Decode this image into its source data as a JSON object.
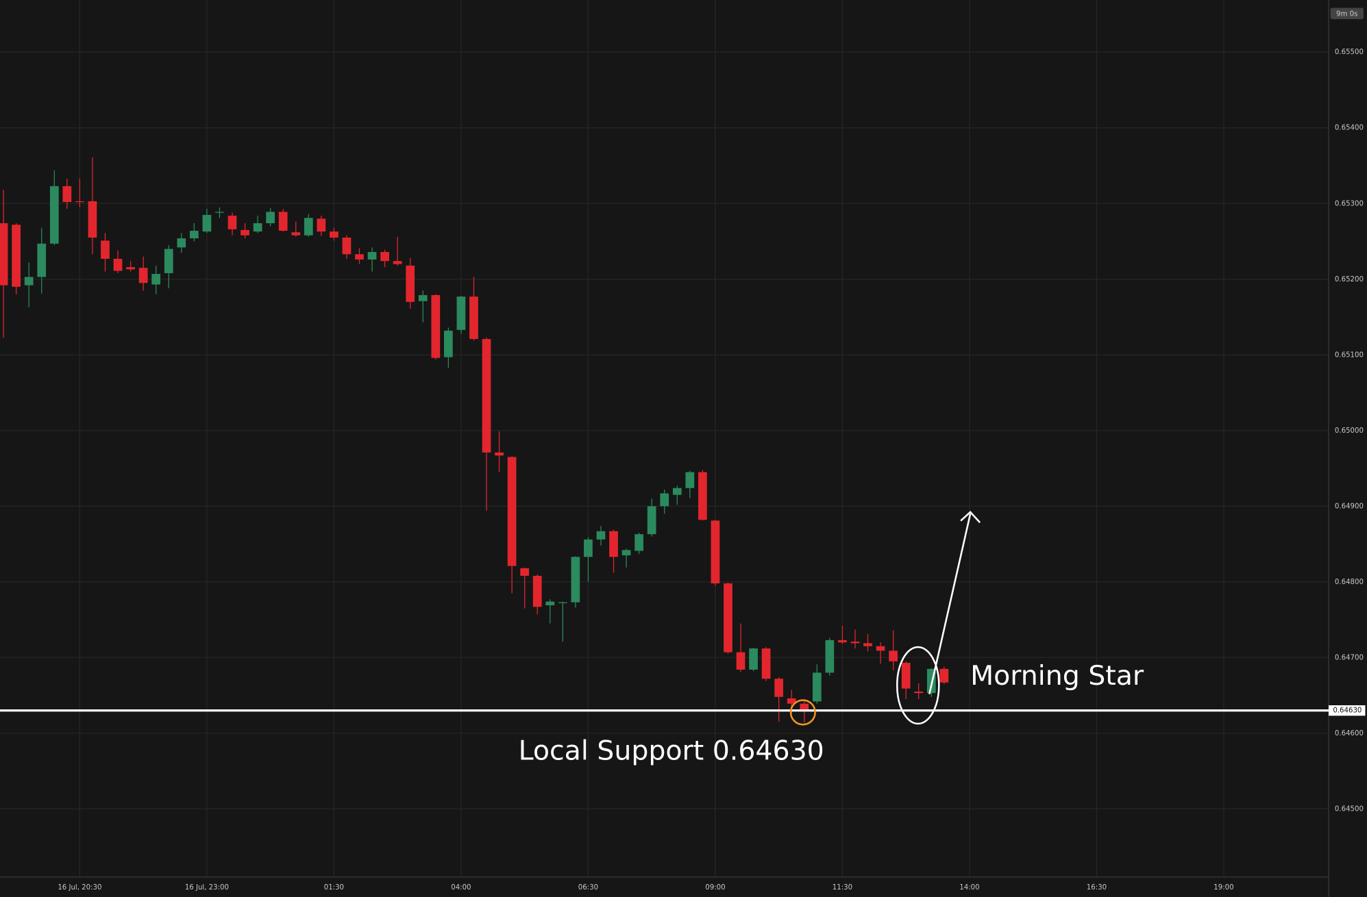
{
  "chart_data": {
    "type": "candlestick",
    "categories": [
      null,
      null,
      null,
      null,
      null,
      null,
      "16 Jul, 20:30",
      null,
      null,
      null,
      null,
      null,
      null,
      null,
      null,
      null,
      "16 Jul, 23:00",
      null,
      null,
      null,
      null,
      null,
      null,
      null,
      null,
      null,
      "01:30",
      null,
      null,
      null,
      null,
      null,
      null,
      null,
      null,
      null,
      "04:00",
      null,
      null,
      null,
      null,
      null,
      null,
      null,
      null,
      null,
      "06:30",
      null,
      null,
      null,
      null,
      null,
      null,
      null,
      null,
      null,
      "09:00",
      null,
      null,
      null,
      null,
      null,
      null,
      null,
      null,
      null,
      "11:30",
      null,
      null,
      null,
      null,
      null,
      null,
      null,
      null,
      null,
      "14:00",
      null,
      null,
      null,
      null,
      null,
      null,
      null,
      null,
      null,
      "16:30",
      null,
      null,
      null,
      null,
      null,
      null,
      null,
      null,
      null,
      "19:00"
    ],
    "open": [
      0.65274,
      0.65272,
      0.65192,
      0.65203,
      0.65247,
      0.65323,
      0.65303,
      0.65303,
      0.65251,
      0.65227,
      0.65216,
      0.65215,
      0.65193,
      0.65208,
      0.65242,
      0.65254,
      0.65263,
      0.65288,
      0.65284,
      0.65265,
      0.65263,
      0.65274,
      0.65289,
      0.65262,
      0.65258,
      0.6528,
      0.65263,
      0.65255,
      0.65233,
      0.65226,
      0.65236,
      0.65224,
      0.65218,
      0.65171,
      0.65179,
      0.65097,
      0.65133,
      0.65177,
      0.65121,
      0.64971,
      0.64965,
      0.64818,
      0.64808,
      0.64769,
      0.64772,
      0.64773,
      0.64833,
      0.64856,
      0.64867,
      0.64835,
      0.64841,
      0.64863,
      0.649,
      0.64915,
      0.64924,
      0.64945,
      0.64881,
      0.64798,
      0.64707,
      0.64684,
      0.64712,
      0.64672,
      0.64646,
      0.64639,
      0.64642,
      0.6468,
      0.64723,
      0.64721,
      0.64719,
      0.64715,
      0.64709,
      0.64693,
      0.64655,
      0.64653,
      0.64685,
      null,
      null,
      null,
      null,
      null,
      null,
      null,
      null,
      null,
      null,
      null,
      null,
      null,
      null,
      null,
      null,
      null,
      null,
      null,
      null,
      null,
      null
    ],
    "high": [
      0.65318,
      0.65274,
      0.65222,
      0.65268,
      0.65344,
      0.65333,
      0.65333,
      0.65361,
      0.65261,
      0.65238,
      0.65224,
      0.6523,
      0.65218,
      0.65245,
      0.65261,
      0.65274,
      0.65293,
      0.65295,
      0.65288,
      0.65274,
      0.65284,
      0.65294,
      0.65293,
      0.65276,
      0.65286,
      0.65284,
      0.65268,
      0.65258,
      0.65241,
      0.65242,
      0.65239,
      0.65256,
      0.65228,
      0.65185,
      0.6518,
      0.65136,
      0.65178,
      0.65203,
      0.65123,
      0.64999,
      0.64966,
      0.64819,
      0.6481,
      0.64777,
      0.64774,
      0.64834,
      0.64859,
      0.64874,
      0.64869,
      0.64844,
      0.64865,
      0.6491,
      0.64922,
      0.64927,
      0.64947,
      0.64948,
      0.64882,
      0.64799,
      0.64745,
      0.64713,
      0.64714,
      0.64674,
      0.64657,
      0.64643,
      0.64691,
      0.64726,
      0.64742,
      0.64737,
      0.64731,
      0.6472,
      0.64736,
      0.64695,
      0.64666,
      0.64686,
      0.64688,
      null,
      null,
      null,
      null,
      null,
      null,
      null,
      null,
      null,
      null,
      null,
      null,
      null,
      null,
      null,
      null,
      null,
      null,
      null,
      null,
      null,
      null
    ],
    "low": [
      0.65123,
      0.6518,
      0.65163,
      0.65181,
      0.65245,
      0.65293,
      0.65295,
      0.65233,
      0.6521,
      0.65208,
      0.6521,
      0.65185,
      0.6518,
      0.65188,
      0.65235,
      0.6525,
      0.65261,
      0.65281,
      0.65258,
      0.65254,
      0.65261,
      0.6527,
      0.65263,
      0.65256,
      0.65256,
      0.65257,
      0.65251,
      0.65227,
      0.6522,
      0.6521,
      0.65216,
      0.65218,
      0.65161,
      0.65143,
      0.65094,
      0.65083,
      0.65128,
      0.65119,
      0.64894,
      0.64945,
      0.64785,
      0.64765,
      0.64757,
      0.64745,
      0.64721,
      0.64766,
      0.648,
      0.64848,
      0.64812,
      0.64819,
      0.64837,
      0.6486,
      0.6489,
      0.64902,
      0.64911,
      0.64881,
      0.64795,
      0.64705,
      0.64681,
      0.64682,
      0.64669,
      0.64615,
      0.64625,
      0.64614,
      0.64639,
      0.64676,
      0.64718,
      0.64712,
      0.64708,
      0.64692,
      0.64683,
      0.64645,
      0.64645,
      0.64648,
      0.64665,
      null,
      null,
      null,
      null,
      null,
      null,
      null,
      null,
      null,
      null,
      null,
      null,
      null,
      null,
      null,
      null,
      null,
      null,
      null,
      null,
      null,
      null
    ],
    "close": [
      0.65192,
      0.6519,
      0.65203,
      0.65247,
      0.65323,
      0.65302,
      0.65302,
      0.65255,
      0.65227,
      0.65211,
      0.65213,
      0.65195,
      0.65207,
      0.6524,
      0.65254,
      0.65264,
      0.65285,
      0.65289,
      0.65266,
      0.65258,
      0.65274,
      0.65289,
      0.65264,
      0.65258,
      0.65281,
      0.65263,
      0.65255,
      0.65233,
      0.65226,
      0.65236,
      0.65224,
      0.6522,
      0.6517,
      0.65179,
      0.65096,
      0.65132,
      0.65177,
      0.65121,
      0.64971,
      0.64967,
      0.64821,
      0.64808,
      0.64767,
      0.64774,
      0.64773,
      0.64833,
      0.64856,
      0.64867,
      0.64833,
      0.64842,
      0.64863,
      0.649,
      0.64917,
      0.64924,
      0.64945,
      0.64882,
      0.64798,
      0.64707,
      0.64684,
      0.64712,
      0.64672,
      0.64648,
      0.64639,
      0.64631,
      0.6468,
      0.64723,
      0.6472,
      0.64719,
      0.64715,
      0.64709,
      0.64695,
      0.64659,
      0.64653,
      0.64685,
      0.64667,
      null,
      null,
      null,
      null,
      null,
      null,
      null,
      null,
      null,
      null,
      null,
      null,
      null,
      null,
      null,
      null,
      null,
      null,
      null,
      null,
      null,
      null
    ],
    "up_color": "#2b8a5e",
    "down_color": "#e3262e",
    "ylim": [
      0.6441,
      0.65569
    ],
    "yticks": [
      {
        "value": 0.655,
        "label": "0.65500"
      },
      {
        "value": 0.654,
        "label": "0.65400"
      },
      {
        "value": 0.653,
        "label": "0.65300"
      },
      {
        "value": 0.652,
        "label": "0.65200"
      },
      {
        "value": 0.651,
        "label": "0.65100"
      },
      {
        "value": 0.65,
        "label": "0.65000"
      },
      {
        "value": 0.649,
        "label": "0.64900"
      },
      {
        "value": 0.648,
        "label": "0.64800"
      },
      {
        "value": 0.647,
        "label": "0.64700"
      },
      {
        "value": 0.646,
        "label": "0.64600"
      },
      {
        "value": 0.645,
        "label": "0.64500"
      }
    ],
    "grid": true,
    "support": {
      "value": 0.6463,
      "label": "0.64630"
    },
    "annotations": [
      "Local Support 0.64630",
      "Morning Star"
    ],
    "countdown": "9m 0s"
  }
}
